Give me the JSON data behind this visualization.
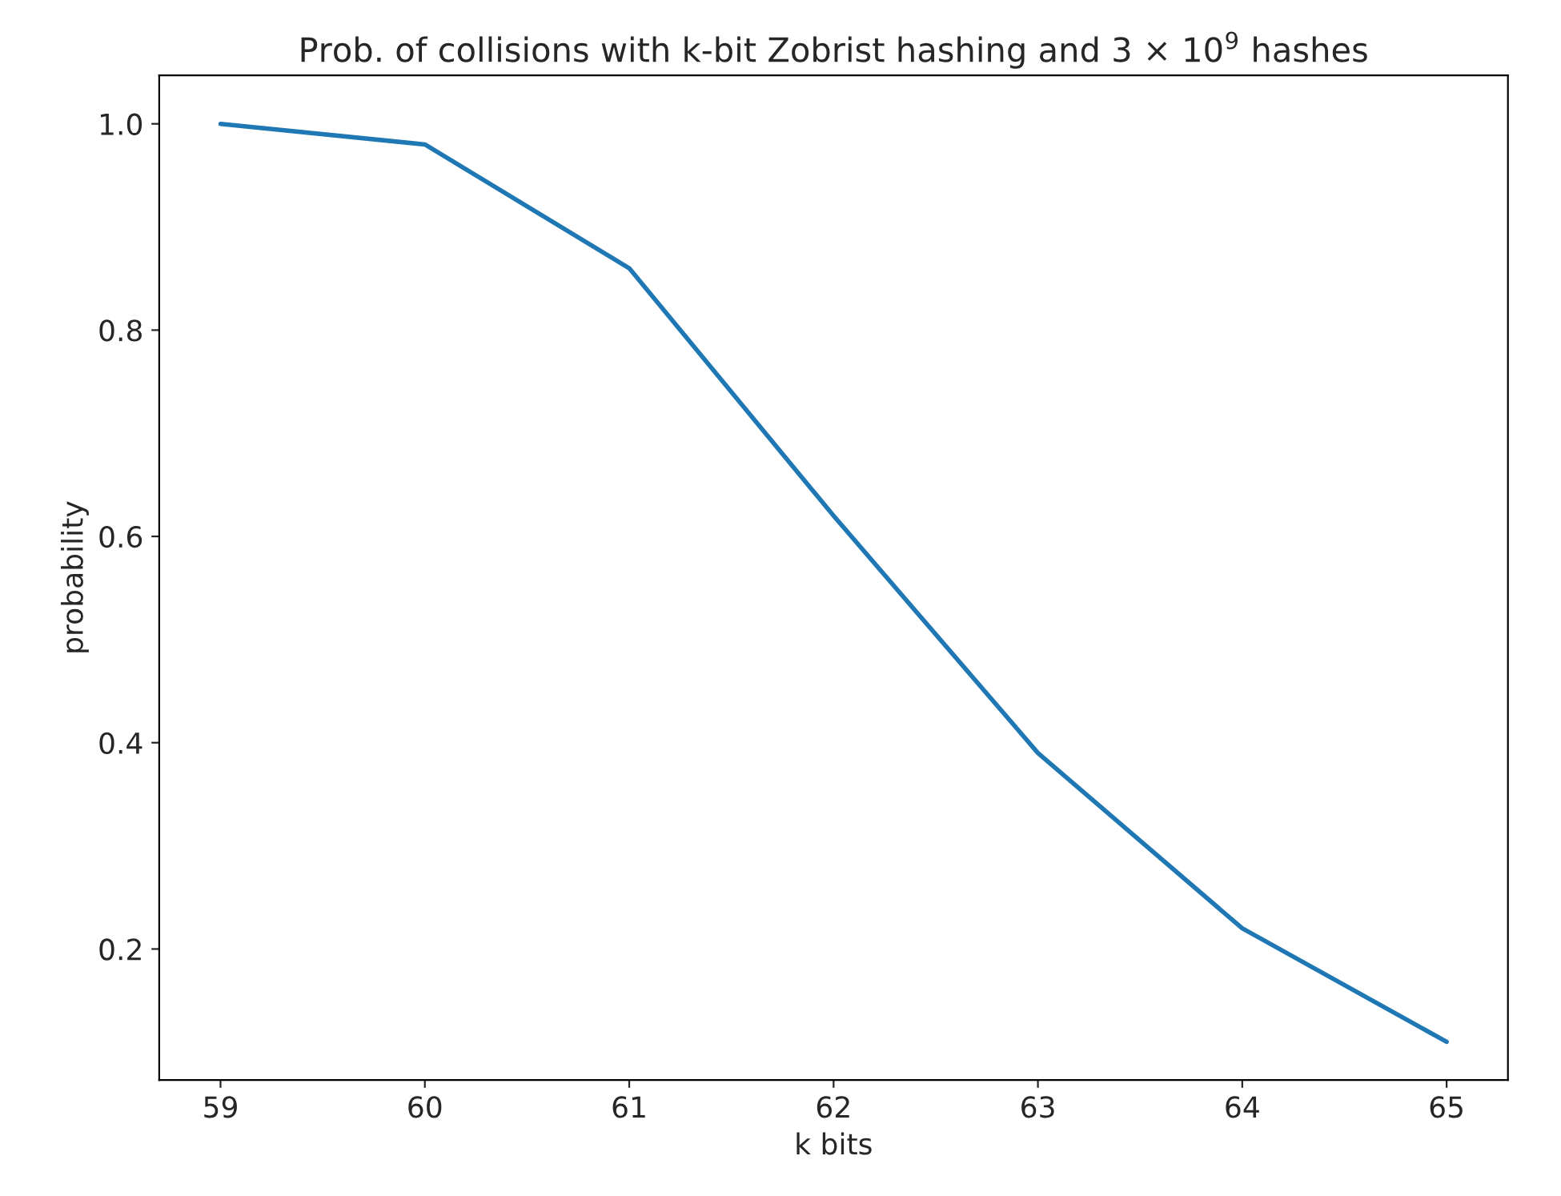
{
  "chart_data": {
    "type": "line",
    "title": "Prob. of collisions with k-bit Zobrist hashing and 3 × 10$^{9}$ hashes",
    "xlabel": "k bits",
    "ylabel": "probability",
    "x": [
      59,
      60,
      61,
      62,
      63,
      64,
      65
    ],
    "series": [
      {
        "color": "#1f77b4",
        "values": [
          1.0,
          0.98,
          0.86,
          0.62,
          0.39,
          0.22,
          0.11
        ]
      }
    ],
    "xlim": [
      58.7,
      65.3
    ],
    "xticks": [
      59,
      60,
      61,
      62,
      63,
      64,
      65
    ],
    "ylim": [
      0.073,
      1.047
    ],
    "yticks": [
      0.2,
      0.4,
      0.6,
      0.8,
      {
        "value": 1.0,
        "label": "1.0"
      }
    ],
    "grid": false,
    "legend": false,
    "marker": "none",
    "line_style": "solid"
  }
}
